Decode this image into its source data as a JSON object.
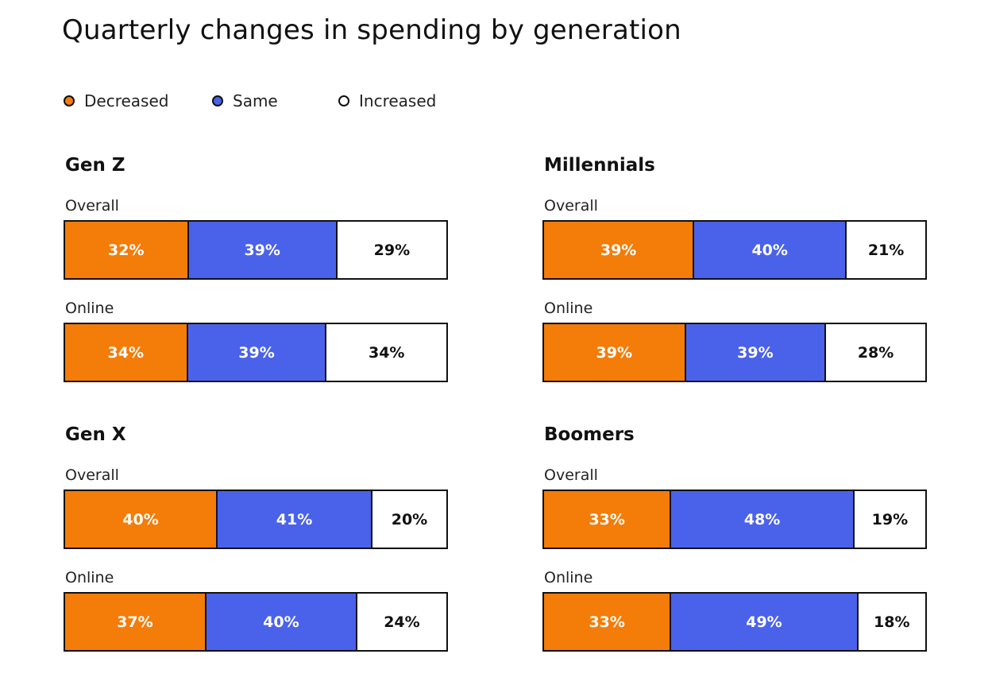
{
  "chart_data": {
    "type": "bar",
    "title": "Quarterly changes in spending by generation",
    "legend": [
      {
        "label": "Decreased",
        "color": "#f47c08"
      },
      {
        "label": "Same",
        "color": "#4a62ea"
      },
      {
        "label": "Increased",
        "color": "#ffffff"
      }
    ],
    "panels": [
      {
        "title": "Gen Z",
        "rows": [
          {
            "label": "Overall",
            "values": [
              32,
              39,
              29
            ],
            "labels": [
              "32%",
              "39%",
              "29%"
            ]
          },
          {
            "label": "Online",
            "values": [
              34,
              39,
              34
            ],
            "labels": [
              "34%",
              "39%",
              "34%"
            ]
          }
        ]
      },
      {
        "title": "Millennials",
        "rows": [
          {
            "label": "Overall",
            "values": [
              39,
              40,
              21
            ],
            "labels": [
              "39%",
              "40%",
              "21%"
            ]
          },
          {
            "label": "Online",
            "values": [
              39,
              39,
              28
            ],
            "labels": [
              "39%",
              "39%",
              "28%"
            ]
          }
        ]
      },
      {
        "title": "Gen X",
        "rows": [
          {
            "label": "Overall",
            "values": [
              40,
              41,
              20
            ],
            "labels": [
              "40%",
              "41%",
              "20%"
            ]
          },
          {
            "label": "Online",
            "values": [
              37,
              40,
              24
            ],
            "labels": [
              "37%",
              "40%",
              "24%"
            ]
          }
        ]
      },
      {
        "title": "Boomers",
        "rows": [
          {
            "label": "Overall",
            "values": [
              33,
              48,
              19
            ],
            "labels": [
              "33%",
              "48%",
              "19%"
            ]
          },
          {
            "label": "Online",
            "values": [
              33,
              49,
              18
            ],
            "labels": [
              "33%",
              "49%",
              "18%"
            ]
          }
        ]
      }
    ]
  }
}
